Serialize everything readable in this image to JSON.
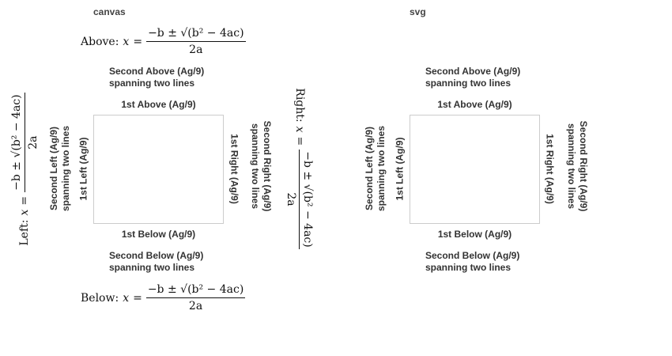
{
  "panels": [
    {
      "id": "canvas",
      "header": "canvas",
      "title_above": "Above: ",
      "title_below": "Below: ",
      "title_left": "Left: ",
      "title_right": "Right: ",
      "second_above": [
        "Second Above (Ag/9)",
        "spanning two lines"
      ],
      "second_below": [
        "Second Below (Ag/9)",
        "spanning two lines"
      ],
      "second_left": [
        "Second Left (Ag/9)",
        "spanning two lines"
      ],
      "second_right": [
        "Second Right (Ag/9)",
        "spanning two lines"
      ],
      "first_above": "1st Above (Ag/9)",
      "first_below": "1st Below (Ag/9)",
      "first_left": "1st Left (Ag/9)",
      "first_right": "1st Right (Ag/9)"
    },
    {
      "id": "svg",
      "header": "svg",
      "second_above": [
        "Second Above (Ag/9)",
        "spanning two lines"
      ],
      "second_below": [
        "Second Below (Ag/9)",
        "spanning two lines"
      ],
      "second_left": [
        "Second Left (Ag/9)",
        "spanning two lines"
      ],
      "second_right": [
        "Second Right (Ag/9)",
        "spanning two lines"
      ],
      "first_above": "1st Above (Ag/9)",
      "first_below": "1st Below (Ag/9)",
      "first_left": "1st Left (Ag/9)",
      "first_right": "1st Right (Ag/9)"
    }
  ],
  "formula": {
    "lhs": "x",
    "equals": "=",
    "numerator": "−b ± √(b² − 4ac)",
    "denominator": "2a"
  }
}
